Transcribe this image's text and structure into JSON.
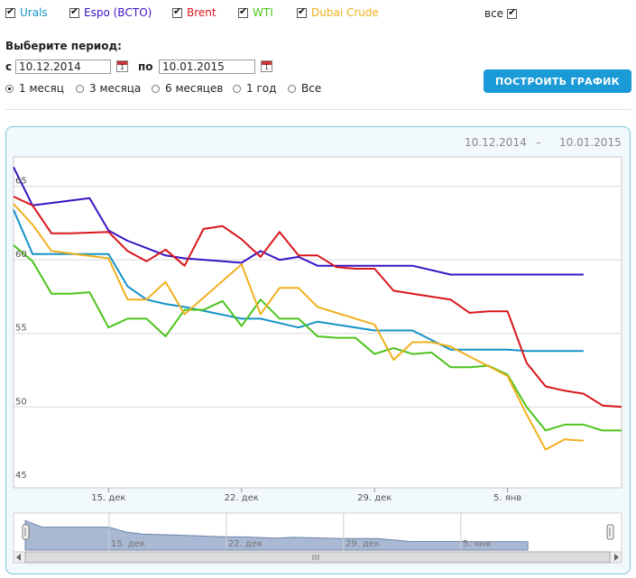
{
  "filters": {
    "series": [
      {
        "label": "Urals",
        "color": "#1493c9"
      },
      {
        "label": "Espo (ВСТО)",
        "color": "#3a13c4"
      },
      {
        "label": "Brent",
        "color": "#d8161b"
      },
      {
        "label": "WTI",
        "color": "#4cc41c"
      },
      {
        "label": "Dubai Crude",
        "color": "#f0b01e"
      }
    ],
    "all_label": "все"
  },
  "period": {
    "title": "Выберите период:",
    "from_label": "с",
    "from_value": "10.12.2014",
    "to_label": "по",
    "to_value": "10.01.2015",
    "options": [
      "1 месяц",
      "3 месяца",
      "6 месяцев",
      "1 год",
      "Все"
    ],
    "selected": "1 месяц"
  },
  "build_button": "ПОСТРОИТЬ ГРАФИК",
  "range": {
    "from": "10.12.2014",
    "dash": "–",
    "to": "10.01.2015"
  },
  "chart_data": {
    "type": "line",
    "x_start": "2014-12-10",
    "ylim": [
      44.5,
      67
    ],
    "yticks": [
      45,
      50,
      55,
      60,
      65
    ],
    "xticks": [
      {
        "date": "2014-12-15",
        "label": "15. дек"
      },
      {
        "date": "2014-12-22",
        "label": "22. дек"
      },
      {
        "date": "2014-12-29",
        "label": "29. дек"
      },
      {
        "date": "2015-01-05",
        "label": "5. янв"
      }
    ],
    "x_end": "2015-01-11",
    "grid": true,
    "legend": "top (checkbox filters)",
    "series": [
      {
        "name": "Urals",
        "color": "#1493c9",
        "points": [
          [
            "2014-12-10",
            63.4
          ],
          [
            "2014-12-11",
            60.4
          ],
          [
            "2014-12-12",
            60.4
          ],
          [
            "2014-12-15",
            60.4
          ],
          [
            "2014-12-16",
            58.2
          ],
          [
            "2014-12-17",
            57.3
          ],
          [
            "2014-12-18",
            57.0
          ],
          [
            "2014-12-19",
            56.8
          ],
          [
            "2014-12-22",
            56.0
          ],
          [
            "2014-12-23",
            56.0
          ],
          [
            "2014-12-24",
            55.7
          ],
          [
            "2014-12-25",
            55.4
          ],
          [
            "2014-12-26",
            55.8
          ],
          [
            "2014-12-29",
            55.2
          ],
          [
            "2014-12-30",
            55.2
          ],
          [
            "2014-12-31",
            55.2
          ],
          [
            "2015-01-02",
            53.9
          ],
          [
            "2015-01-05",
            53.9
          ],
          [
            "2015-01-06",
            53.8
          ],
          [
            "2015-01-07",
            53.8
          ],
          [
            "2015-01-08",
            53.8
          ],
          [
            "2015-01-09",
            53.8
          ]
        ]
      },
      {
        "name": "Espo (ВСТО)",
        "color": "#3a13c4",
        "points": [
          [
            "2014-12-10",
            66.3
          ],
          [
            "2014-12-11",
            63.7
          ],
          [
            "2014-12-14",
            64.2
          ],
          [
            "2014-12-15",
            62.0
          ],
          [
            "2014-12-16",
            61.3
          ],
          [
            "2014-12-17",
            60.8
          ],
          [
            "2014-12-18",
            60.3
          ],
          [
            "2014-12-19",
            60.1
          ],
          [
            "2014-12-22",
            59.8
          ],
          [
            "2014-12-23",
            60.6
          ],
          [
            "2014-12-24",
            60.0
          ],
          [
            "2014-12-25",
            60.2
          ],
          [
            "2014-12-26",
            59.6
          ],
          [
            "2014-12-29",
            59.6
          ],
          [
            "2014-12-30",
            59.6
          ],
          [
            "2014-12-31",
            59.6
          ],
          [
            "2015-01-02",
            59.0
          ],
          [
            "2015-01-05",
            59.0
          ],
          [
            "2015-01-06",
            59.0
          ],
          [
            "2015-01-07",
            59.0
          ],
          [
            "2015-01-08",
            59.0
          ],
          [
            "2015-01-09",
            59.0
          ]
        ]
      },
      {
        "name": "Brent",
        "color": "#d8161b",
        "points": [
          [
            "2014-12-10",
            64.3
          ],
          [
            "2014-12-11",
            63.7
          ],
          [
            "2014-12-12",
            61.8
          ],
          [
            "2014-12-13",
            61.8
          ],
          [
            "2014-12-15",
            61.9
          ],
          [
            "2014-12-16",
            60.6
          ],
          [
            "2014-12-17",
            59.9
          ],
          [
            "2014-12-18",
            60.7
          ],
          [
            "2014-12-19",
            59.6
          ],
          [
            "2014-12-20",
            62.1
          ],
          [
            "2014-12-21",
            62.3
          ],
          [
            "2014-12-22",
            61.4
          ],
          [
            "2014-12-23",
            60.2
          ],
          [
            "2014-12-24",
            61.9
          ],
          [
            "2014-12-25",
            60.3
          ],
          [
            "2014-12-26",
            60.3
          ],
          [
            "2014-12-27",
            59.5
          ],
          [
            "2014-12-28",
            59.4
          ],
          [
            "2014-12-29",
            59.4
          ],
          [
            "2014-12-30",
            57.9
          ],
          [
            "2014-12-31",
            57.7
          ],
          [
            "2015-01-01",
            57.5
          ],
          [
            "2015-01-02",
            57.3
          ],
          [
            "2015-01-03",
            56.4
          ],
          [
            "2015-01-04",
            56.5
          ],
          [
            "2015-01-05",
            56.5
          ],
          [
            "2015-01-06",
            53.0
          ],
          [
            "2015-01-07",
            51.4
          ],
          [
            "2015-01-08",
            51.1
          ],
          [
            "2015-01-09",
            50.9
          ],
          [
            "2015-01-10",
            50.1
          ],
          [
            "2015-01-11",
            50.0
          ]
        ]
      },
      {
        "name": "WTI",
        "color": "#4cc41c",
        "points": [
          [
            "2014-12-10",
            61.0
          ],
          [
            "2014-12-11",
            59.9
          ],
          [
            "2014-12-12",
            57.7
          ],
          [
            "2014-12-13",
            57.7
          ],
          [
            "2014-12-14",
            57.8
          ],
          [
            "2014-12-15",
            55.4
          ],
          [
            "2014-12-16",
            56.0
          ],
          [
            "2014-12-17",
            56.0
          ],
          [
            "2014-12-18",
            54.8
          ],
          [
            "2014-12-19",
            56.6
          ],
          [
            "2014-12-20",
            56.6
          ],
          [
            "2014-12-21",
            57.2
          ],
          [
            "2014-12-22",
            55.5
          ],
          [
            "2014-12-23",
            57.3
          ],
          [
            "2014-12-24",
            56.0
          ],
          [
            "2014-12-25",
            56.0
          ],
          [
            "2014-12-26",
            54.8
          ],
          [
            "2014-12-27",
            54.7
          ],
          [
            "2014-12-28",
            54.7
          ],
          [
            "2014-12-29",
            53.6
          ],
          [
            "2014-12-30",
            54.0
          ],
          [
            "2014-12-31",
            53.6
          ],
          [
            "2015-01-01",
            53.7
          ],
          [
            "2015-01-02",
            52.7
          ],
          [
            "2015-01-03",
            52.7
          ],
          [
            "2015-01-04",
            52.8
          ],
          [
            "2015-01-05",
            52.2
          ],
          [
            "2015-01-06",
            50.0
          ],
          [
            "2015-01-07",
            48.4
          ],
          [
            "2015-01-08",
            48.8
          ],
          [
            "2015-01-09",
            48.8
          ],
          [
            "2015-01-10",
            48.4
          ],
          [
            "2015-01-11",
            48.4
          ]
        ]
      },
      {
        "name": "Dubai Crude",
        "color": "#f0b01e",
        "points": [
          [
            "2014-12-10",
            63.8
          ],
          [
            "2014-12-11",
            62.4
          ],
          [
            "2014-12-12",
            60.6
          ],
          [
            "2014-12-15",
            60.1
          ],
          [
            "2014-12-16",
            57.3
          ],
          [
            "2014-12-17",
            57.3
          ],
          [
            "2014-12-18",
            58.5
          ],
          [
            "2014-12-19",
            56.3
          ],
          [
            "2014-12-22",
            59.7
          ],
          [
            "2014-12-23",
            56.3
          ],
          [
            "2014-12-24",
            58.1
          ],
          [
            "2014-12-25",
            58.1
          ],
          [
            "2014-12-26",
            56.8
          ],
          [
            "2014-12-29",
            55.6
          ],
          [
            "2014-12-30",
            53.2
          ],
          [
            "2014-12-31",
            54.4
          ],
          [
            "2015-01-01",
            54.4
          ],
          [
            "2015-01-02",
            54.1
          ],
          [
            "2015-01-05",
            52.1
          ],
          [
            "2015-01-06",
            49.5
          ],
          [
            "2015-01-07",
            47.1
          ],
          [
            "2015-01-08",
            47.8
          ],
          [
            "2015-01-09",
            47.7
          ]
        ]
      }
    ]
  }
}
